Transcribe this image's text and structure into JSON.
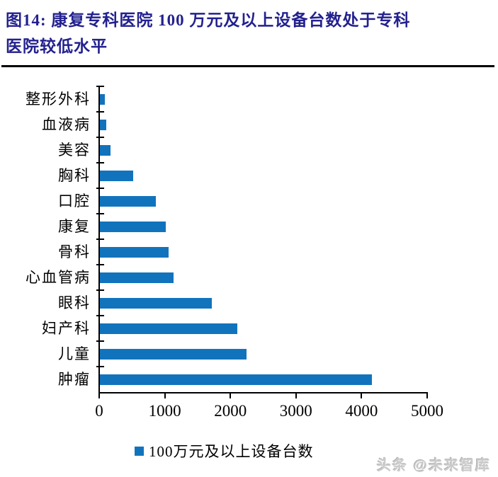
{
  "title": {
    "line1": "图14:  康复专科医院 100 万元及以上设备台数处于专科",
    "line2": "医院较低水平"
  },
  "legend": {
    "label": "100万元及以上设备台数"
  },
  "watermark": {
    "text": "头条 @未来智库"
  },
  "colors": {
    "bar": "#1273BD",
    "title": "#23218F",
    "axis": "#000000",
    "watermark": "#CBCBCB"
  },
  "chart_data": {
    "type": "bar",
    "orientation": "horizontal",
    "title": "图14: 康复专科医院 100 万元及以上设备台数处于专科医院较低水平",
    "categories": [
      "整形外科",
      "血液病",
      "美容",
      "胸科",
      "口腔",
      "康复",
      "骨科",
      "心血管病",
      "眼科",
      "妇产科",
      "儿童",
      "肿瘤"
    ],
    "values": [
      80,
      100,
      160,
      510,
      850,
      1000,
      1050,
      1120,
      1710,
      2090,
      2240,
      4150
    ],
    "series": [
      {
        "name": "100万元及以上设备台数",
        "values": [
          80,
          100,
          160,
          510,
          850,
          1000,
          1050,
          1120,
          1710,
          2090,
          2240,
          4150
        ]
      }
    ],
    "xlabel": "",
    "ylabel": "",
    "xlim": [
      0,
      5000
    ],
    "xticks": [
      "0",
      "1000",
      "2000",
      "3000",
      "4000",
      "5000"
    ],
    "grid": false,
    "legend_position": "bottom"
  }
}
